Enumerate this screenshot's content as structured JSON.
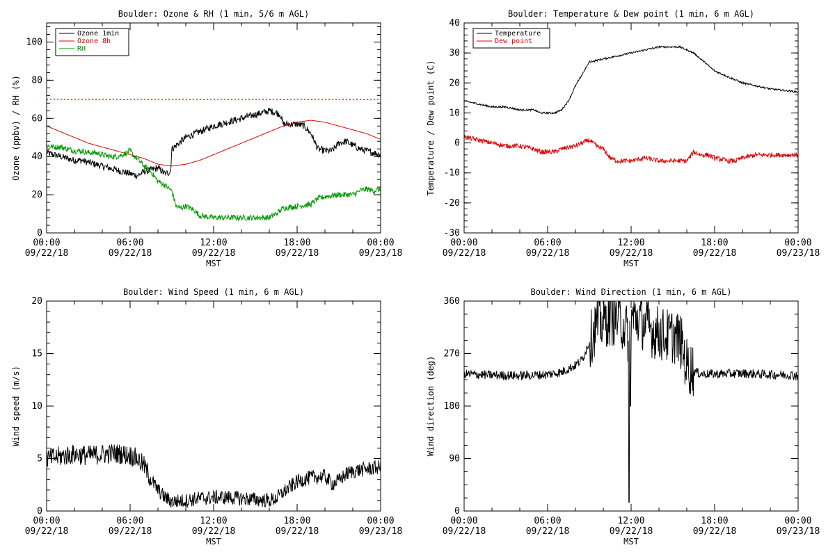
{
  "chart_data": [
    {
      "type": "line",
      "title": "Boulder: Ozone & RH (1 min, 5/6 m AGL)",
      "xlabel": "MST",
      "ylabel": "Ozone (ppbv) / RH (%)",
      "xlim": [
        0,
        24
      ],
      "ylim": [
        0,
        110
      ],
      "yticks": [
        0,
        20,
        40,
        60,
        80,
        100
      ],
      "reference_line": {
        "y": 70,
        "style": "dotted",
        "color": "#e00000"
      },
      "legend": {
        "position": "top-left",
        "entries": [
          "Ozone 1min",
          "Ozone 8h",
          "RH"
        ]
      },
      "series": [
        {
          "name": "Ozone 1min",
          "color": "#000000",
          "noise": 1.8,
          "x": [
            0,
            0.5,
            1,
            1.5,
            2,
            2.5,
            3,
            3.5,
            4,
            4.5,
            5,
            5.5,
            6,
            6.5,
            7,
            7.5,
            8,
            8.5,
            8.9,
            9.0,
            9.5,
            10,
            11,
            12,
            13,
            14,
            15,
            15.5,
            16,
            16.5,
            16.8,
            17,
            17.5,
            18,
            18.5,
            19,
            19.5,
            20,
            20.5,
            21,
            21.5,
            22,
            22.5,
            23,
            23.5,
            24
          ],
          "y": [
            42,
            41,
            40,
            39,
            38,
            38,
            37,
            36,
            35,
            34,
            33,
            32,
            31,
            30,
            32,
            33,
            34,
            31,
            32,
            44,
            47,
            50,
            53,
            56,
            58,
            60,
            62,
            63,
            64,
            63,
            62,
            57,
            57,
            57,
            56,
            52,
            44,
            43,
            43,
            47,
            48,
            46,
            44,
            43,
            42,
            41
          ]
        },
        {
          "name": "Ozone 8h",
          "color": "#e00000",
          "noise": 0,
          "x": [
            0,
            1,
            2,
            3,
            4,
            5,
            6,
            7,
            8,
            9,
            10,
            11,
            12,
            13,
            14,
            15,
            16,
            17,
            18,
            19,
            20,
            21,
            22,
            23,
            24
          ],
          "y": [
            56,
            53,
            50,
            47,
            45,
            43,
            41,
            39,
            36,
            35,
            36,
            38,
            41,
            44,
            47,
            50,
            53,
            56,
            58,
            59,
            58,
            56,
            54,
            52,
            49
          ]
        },
        {
          "name": "RH",
          "color": "#009900",
          "noise": 1.5,
          "x": [
            0,
            0.5,
            1,
            1.5,
            2,
            2.5,
            3,
            3.5,
            4,
            4.5,
            5,
            5.5,
            6,
            6.2,
            6.5,
            7,
            7.5,
            8,
            8.5,
            9,
            9.3,
            9.6,
            10,
            10.6,
            11,
            12,
            13,
            14,
            15,
            16,
            16.5,
            17,
            18,
            19,
            19.5,
            20,
            21,
            22,
            22.5,
            23,
            23.5,
            24
          ],
          "y": [
            46,
            45,
            45,
            44,
            43,
            43,
            42,
            42,
            41,
            40,
            40,
            41,
            43,
            41,
            39,
            35,
            32,
            27,
            25,
            22,
            14,
            13,
            14,
            12,
            9,
            8,
            8,
            8,
            8,
            8,
            10,
            13,
            14,
            15,
            18,
            19,
            20,
            20,
            22,
            23,
            22,
            23
          ]
        }
      ]
    },
    {
      "type": "line",
      "title": "Boulder: Temperature & Dew point (1 min, 6 m AGL)",
      "xlabel": "MST",
      "ylabel": "Temperature / Dew point (C)",
      "xlim": [
        0,
        24
      ],
      "ylim": [
        -30,
        40
      ],
      "yticks": [
        -30,
        -20,
        -10,
        0,
        10,
        20,
        30,
        40
      ],
      "legend": {
        "position": "top-left",
        "entries": [
          "Temperature",
          "Dew point"
        ]
      },
      "series": [
        {
          "name": "Temperature",
          "color": "#000000",
          "noise": 0.3,
          "x": [
            0,
            1,
            2,
            3,
            4,
            5,
            5.5,
            6,
            6.5,
            7,
            7.5,
            8,
            8.5,
            9,
            10,
            11,
            12,
            13,
            14,
            15,
            15.5,
            16,
            16.5,
            17,
            17.5,
            18,
            19,
            20,
            21,
            22,
            23,
            24
          ],
          "y": [
            14,
            13,
            12,
            12,
            11,
            11,
            10,
            10,
            10,
            11,
            14,
            19,
            23,
            27,
            28,
            29,
            30,
            31,
            32,
            32,
            32,
            31,
            30,
            28,
            26,
            24,
            22,
            20,
            19,
            18,
            17.5,
            17
          ]
        },
        {
          "name": "Dew point",
          "color": "#e00000",
          "noise": 0.8,
          "x": [
            0,
            1,
            2,
            3,
            4,
            5,
            5.5,
            6,
            6.5,
            7,
            8,
            8.5,
            9,
            9.5,
            10,
            10.5,
            11,
            12,
            13,
            14,
            15,
            16,
            16.5,
            17,
            17.5,
            18,
            19,
            19.5,
            20,
            21,
            22,
            23,
            24
          ],
          "y": [
            2,
            1,
            0,
            -1,
            -1,
            -2,
            -3,
            -3,
            -3,
            -2,
            -1,
            0,
            1,
            -1,
            -2,
            -5,
            -6,
            -6,
            -5,
            -6,
            -6,
            -6,
            -3,
            -4,
            -4,
            -5,
            -6,
            -6,
            -5,
            -4,
            -4,
            -4,
            -4
          ]
        }
      ]
    },
    {
      "type": "line",
      "title": "Boulder: Wind Speed (1 min, 6 m AGL)",
      "xlabel": "MST",
      "ylabel": "Wind speed (m/s)",
      "xlim": [
        0,
        24
      ],
      "ylim": [
        0,
        20
      ],
      "yticks": [
        0,
        5,
        10,
        15,
        20
      ],
      "series": [
        {
          "name": "",
          "color": "#000000",
          "noise": 0.7,
          "x": [
            0,
            1,
            2,
            3,
            4,
            5,
            6,
            6.5,
            7,
            7.5,
            8,
            8.5,
            9,
            10,
            11,
            12,
            13,
            14,
            15,
            16,
            16.5,
            17,
            17.5,
            18,
            19,
            20,
            20.5,
            21,
            21.5,
            22,
            23,
            24
          ],
          "y": [
            5,
            5.2,
            5.4,
            5.3,
            5.4,
            5.5,
            5.3,
            5.0,
            4.3,
            3.0,
            2.0,
            1.3,
            0.9,
            1.0,
            1.2,
            1.3,
            1.3,
            1.2,
            1.1,
            1.0,
            1.2,
            1.8,
            2.3,
            2.8,
            3.2,
            3.3,
            2.6,
            2.9,
            3.5,
            3.8,
            4.0,
            4.2
          ]
        }
      ]
    },
    {
      "type": "line",
      "title": "Boulder: Wind Direction (1 min, 6 m AGL)",
      "xlabel": "MST",
      "ylabel": "Wind direction (deg)",
      "xlim": [
        0,
        24
      ],
      "ylim": [
        0,
        360
      ],
      "yticks": [
        0,
        90,
        180,
        270,
        360
      ],
      "series": [
        {
          "name": "",
          "color": "#000000",
          "noise": 8,
          "x": [
            0,
            2,
            4,
            6,
            7,
            8,
            8.5,
            9,
            9.5,
            10,
            10.5,
            11,
            11.5,
            11.8,
            12,
            12.5,
            13,
            13.5,
            14,
            14.5,
            15,
            15.5,
            16,
            16.5,
            17,
            18,
            20,
            22,
            24
          ],
          "y": [
            235,
            233,
            232,
            234,
            238,
            250,
            260,
            290,
            320,
            325,
            330,
            330,
            320,
            300,
            330,
            330,
            320,
            310,
            305,
            300,
            300,
            295,
            250,
            240,
            235,
            235,
            236,
            234,
            233
          ],
          "spikes": [
            {
              "x": 11.85,
              "y": 15
            },
            {
              "x": 11.95,
              "y": 180
            }
          ]
        }
      ]
    }
  ],
  "x_tick_labels": [
    {
      "time": "00:00",
      "date": "09/22/18"
    },
    {
      "time": "06:00",
      "date": "09/22/18"
    },
    {
      "time": "12:00",
      "date": "09/22/18"
    },
    {
      "time": "18:00",
      "date": "09/22/18"
    },
    {
      "time": "00:00",
      "date": "09/23/18"
    }
  ],
  "x_tick_hours": [
    0,
    6,
    12,
    18,
    24
  ]
}
